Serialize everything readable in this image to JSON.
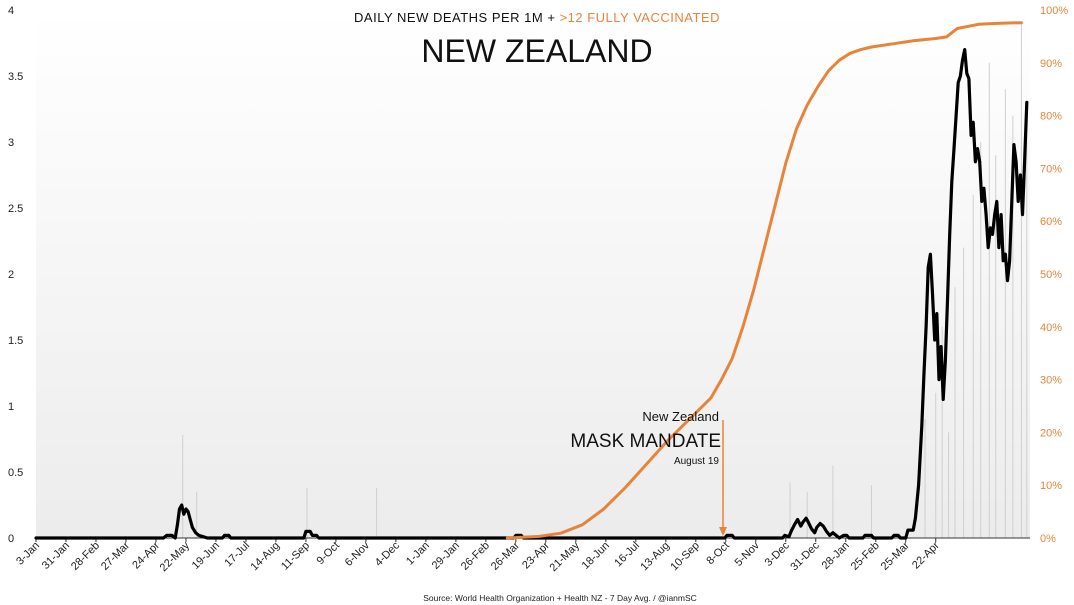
{
  "chart_data": {
    "type": "line",
    "title": "NEW ZEALAND",
    "subtitle_black": "DAILY NEW DEATHS PER 1M + ",
    "subtitle_orange": ">12 FULLY VACCINATED",
    "source": "Source: World Health Organization + Health NZ - 7 Day Avg. / @ianmSC",
    "left_axis": {
      "ylim": [
        0,
        4
      ],
      "ticks": [
        "0",
        "0.5",
        "1",
        "1.5",
        "2",
        "2.5",
        "3",
        "3.5",
        "4"
      ]
    },
    "right_axis": {
      "ylim": [
        0,
        100
      ],
      "ticks": [
        "0%",
        "10%",
        "20%",
        "30%",
        "40%",
        "50%",
        "60%",
        "70%",
        "80%",
        "90%",
        "100%"
      ]
    },
    "x_tick_labels": [
      "3-Jan",
      "31-Jan",
      "28-Feb",
      "27-Mar",
      "24-Apr",
      "22-May",
      "19-Jun",
      "17-Jul",
      "14-Aug",
      "11-Sep",
      "9-Oct",
      "6-Nov",
      "4-Dec",
      "1-Jan",
      "29-Jan",
      "26-Feb",
      "26-Mar",
      "23-Apr",
      "21-May",
      "18-Jun",
      "16-Jul",
      "13-Aug",
      "10-Sep",
      "8-Oct",
      "5-Nov",
      "3-Dec",
      "31-Dec",
      "28-Jan",
      "25-Feb",
      "25-Mar",
      "22-Apr"
    ],
    "x_range": [
      "3-Jan",
      "20-May"
    ],
    "series": [
      {
        "axis": "left",
        "color": "#000000",
        "points": [
          [
            0,
            0
          ],
          [
            119,
            0
          ],
          [
            122,
            0.02
          ],
          [
            127,
            0.02
          ],
          [
            130,
            0
          ],
          [
            132,
            0.1
          ],
          [
            134,
            0.22
          ],
          [
            136,
            0.25
          ],
          [
            138,
            0.18
          ],
          [
            140,
            0.22
          ],
          [
            142,
            0.2
          ],
          [
            144,
            0.14
          ],
          [
            146,
            0.08
          ],
          [
            149,
            0.04
          ],
          [
            152,
            0.02
          ],
          [
            156,
            0.01
          ],
          [
            160,
            0
          ],
          [
            174,
            0
          ],
          [
            176,
            0.02
          ],
          [
            180,
            0.02
          ],
          [
            182,
            0
          ],
          [
            250,
            0
          ],
          [
            252,
            0.05
          ],
          [
            256,
            0.05
          ],
          [
            258,
            0.02
          ],
          [
            262,
            0.02
          ],
          [
            264,
            0
          ],
          [
            446,
            0
          ],
          [
            448,
            0.02
          ],
          [
            453,
            0.02
          ],
          [
            455,
            0
          ],
          [
            643,
            0
          ],
          [
            645,
            0.02
          ],
          [
            650,
            0.02
          ],
          [
            652,
            0
          ],
          [
            697,
            0
          ],
          [
            699,
            0.02
          ],
          [
            703,
            0.01
          ],
          [
            705,
            0.05
          ],
          [
            708,
            0.1
          ],
          [
            711,
            0.14
          ],
          [
            714,
            0.09
          ],
          [
            716,
            0.12
          ],
          [
            719,
            0.15
          ],
          [
            721,
            0.12
          ],
          [
            724,
            0.07
          ],
          [
            727,
            0.04
          ],
          [
            729,
            0.08
          ],
          [
            732,
            0.11
          ],
          [
            735,
            0.09
          ],
          [
            738,
            0.05
          ],
          [
            741,
            0.02
          ],
          [
            744,
            0.04
          ],
          [
            747,
            0.02
          ],
          [
            750,
            0
          ],
          [
            754,
            0.02
          ],
          [
            757,
            0.02
          ],
          [
            759,
            0
          ],
          [
            772,
            0
          ],
          [
            774,
            0.02
          ],
          [
            780,
            0.02
          ],
          [
            782,
            0
          ],
          [
            799,
            0
          ],
          [
            801,
            0.02
          ],
          [
            805,
            0.02
          ],
          [
            807,
            0
          ],
          [
            812,
            0
          ],
          [
            814,
            0.06
          ],
          [
            819,
            0.06
          ],
          [
            821,
            0.15
          ],
          [
            824,
            0.4
          ],
          [
            827,
            0.85
          ],
          [
            829,
            1.25
          ],
          [
            831,
            1.6
          ],
          [
            833,
            2.05
          ],
          [
            835,
            2.15
          ],
          [
            837,
            1.85
          ],
          [
            839,
            1.5
          ],
          [
            841,
            1.7
          ],
          [
            843,
            1.2
          ],
          [
            845,
            1.45
          ],
          [
            847,
            1.05
          ],
          [
            849,
            1.35
          ],
          [
            851,
            1.8
          ],
          [
            853,
            2.3
          ],
          [
            855,
            2.7
          ],
          [
            857,
            2.95
          ],
          [
            859,
            3.2
          ],
          [
            861,
            3.45
          ],
          [
            863,
            3.5
          ],
          [
            865,
            3.62
          ],
          [
            867,
            3.7
          ],
          [
            869,
            3.52
          ],
          [
            871,
            3.48
          ],
          [
            873,
            3.05
          ],
          [
            875,
            3.15
          ],
          [
            877,
            2.85
          ],
          [
            879,
            2.95
          ],
          [
            881,
            2.85
          ],
          [
            883,
            2.55
          ],
          [
            885,
            2.65
          ],
          [
            887,
            2.45
          ],
          [
            889,
            2.2
          ],
          [
            891,
            2.35
          ],
          [
            893,
            2.3
          ],
          [
            895,
            2.45
          ],
          [
            897,
            2.55
          ],
          [
            899,
            2.2
          ],
          [
            901,
            2.45
          ],
          [
            903,
            2.1
          ],
          [
            905,
            2.15
          ],
          [
            907,
            1.95
          ],
          [
            909,
            2.1
          ],
          [
            911,
            2.55
          ],
          [
            913,
            2.98
          ],
          [
            915,
            2.85
          ],
          [
            917,
            2.55
          ],
          [
            919,
            2.75
          ],
          [
            921,
            2.45
          ],
          [
            923,
            2.85
          ],
          [
            925,
            3.3
          ]
        ]
      },
      {
        "axis": "right",
        "color": "#e8833a",
        "points": [
          [
            440,
            0
          ],
          [
            470,
            0.3
          ],
          [
            490,
            0.9
          ],
          [
            510,
            2.5
          ],
          [
            530,
            5.5
          ],
          [
            550,
            9.5
          ],
          [
            570,
            14
          ],
          [
            590,
            18.5
          ],
          [
            610,
            22.5
          ],
          [
            630,
            26.5
          ],
          [
            640,
            30
          ],
          [
            650,
            34
          ],
          [
            660,
            40
          ],
          [
            670,
            47
          ],
          [
            680,
            55
          ],
          [
            690,
            63
          ],
          [
            700,
            71
          ],
          [
            710,
            77.5
          ],
          [
            720,
            82
          ],
          [
            730,
            85.5
          ],
          [
            740,
            88.5
          ],
          [
            750,
            90.5
          ],
          [
            760,
            91.8
          ],
          [
            770,
            92.5
          ],
          [
            780,
            93
          ],
          [
            800,
            93.6
          ],
          [
            820,
            94.2
          ],
          [
            840,
            94.6
          ],
          [
            850,
            94.9
          ],
          [
            860,
            96.5
          ],
          [
            880,
            97.3
          ],
          [
            900,
            97.5
          ],
          [
            920,
            97.6
          ]
        ]
      }
    ],
    "annotation": {
      "line1": "New Zealand",
      "line2": "MASK MANDATE",
      "line3": "August 19",
      "x_day": 593
    }
  }
}
